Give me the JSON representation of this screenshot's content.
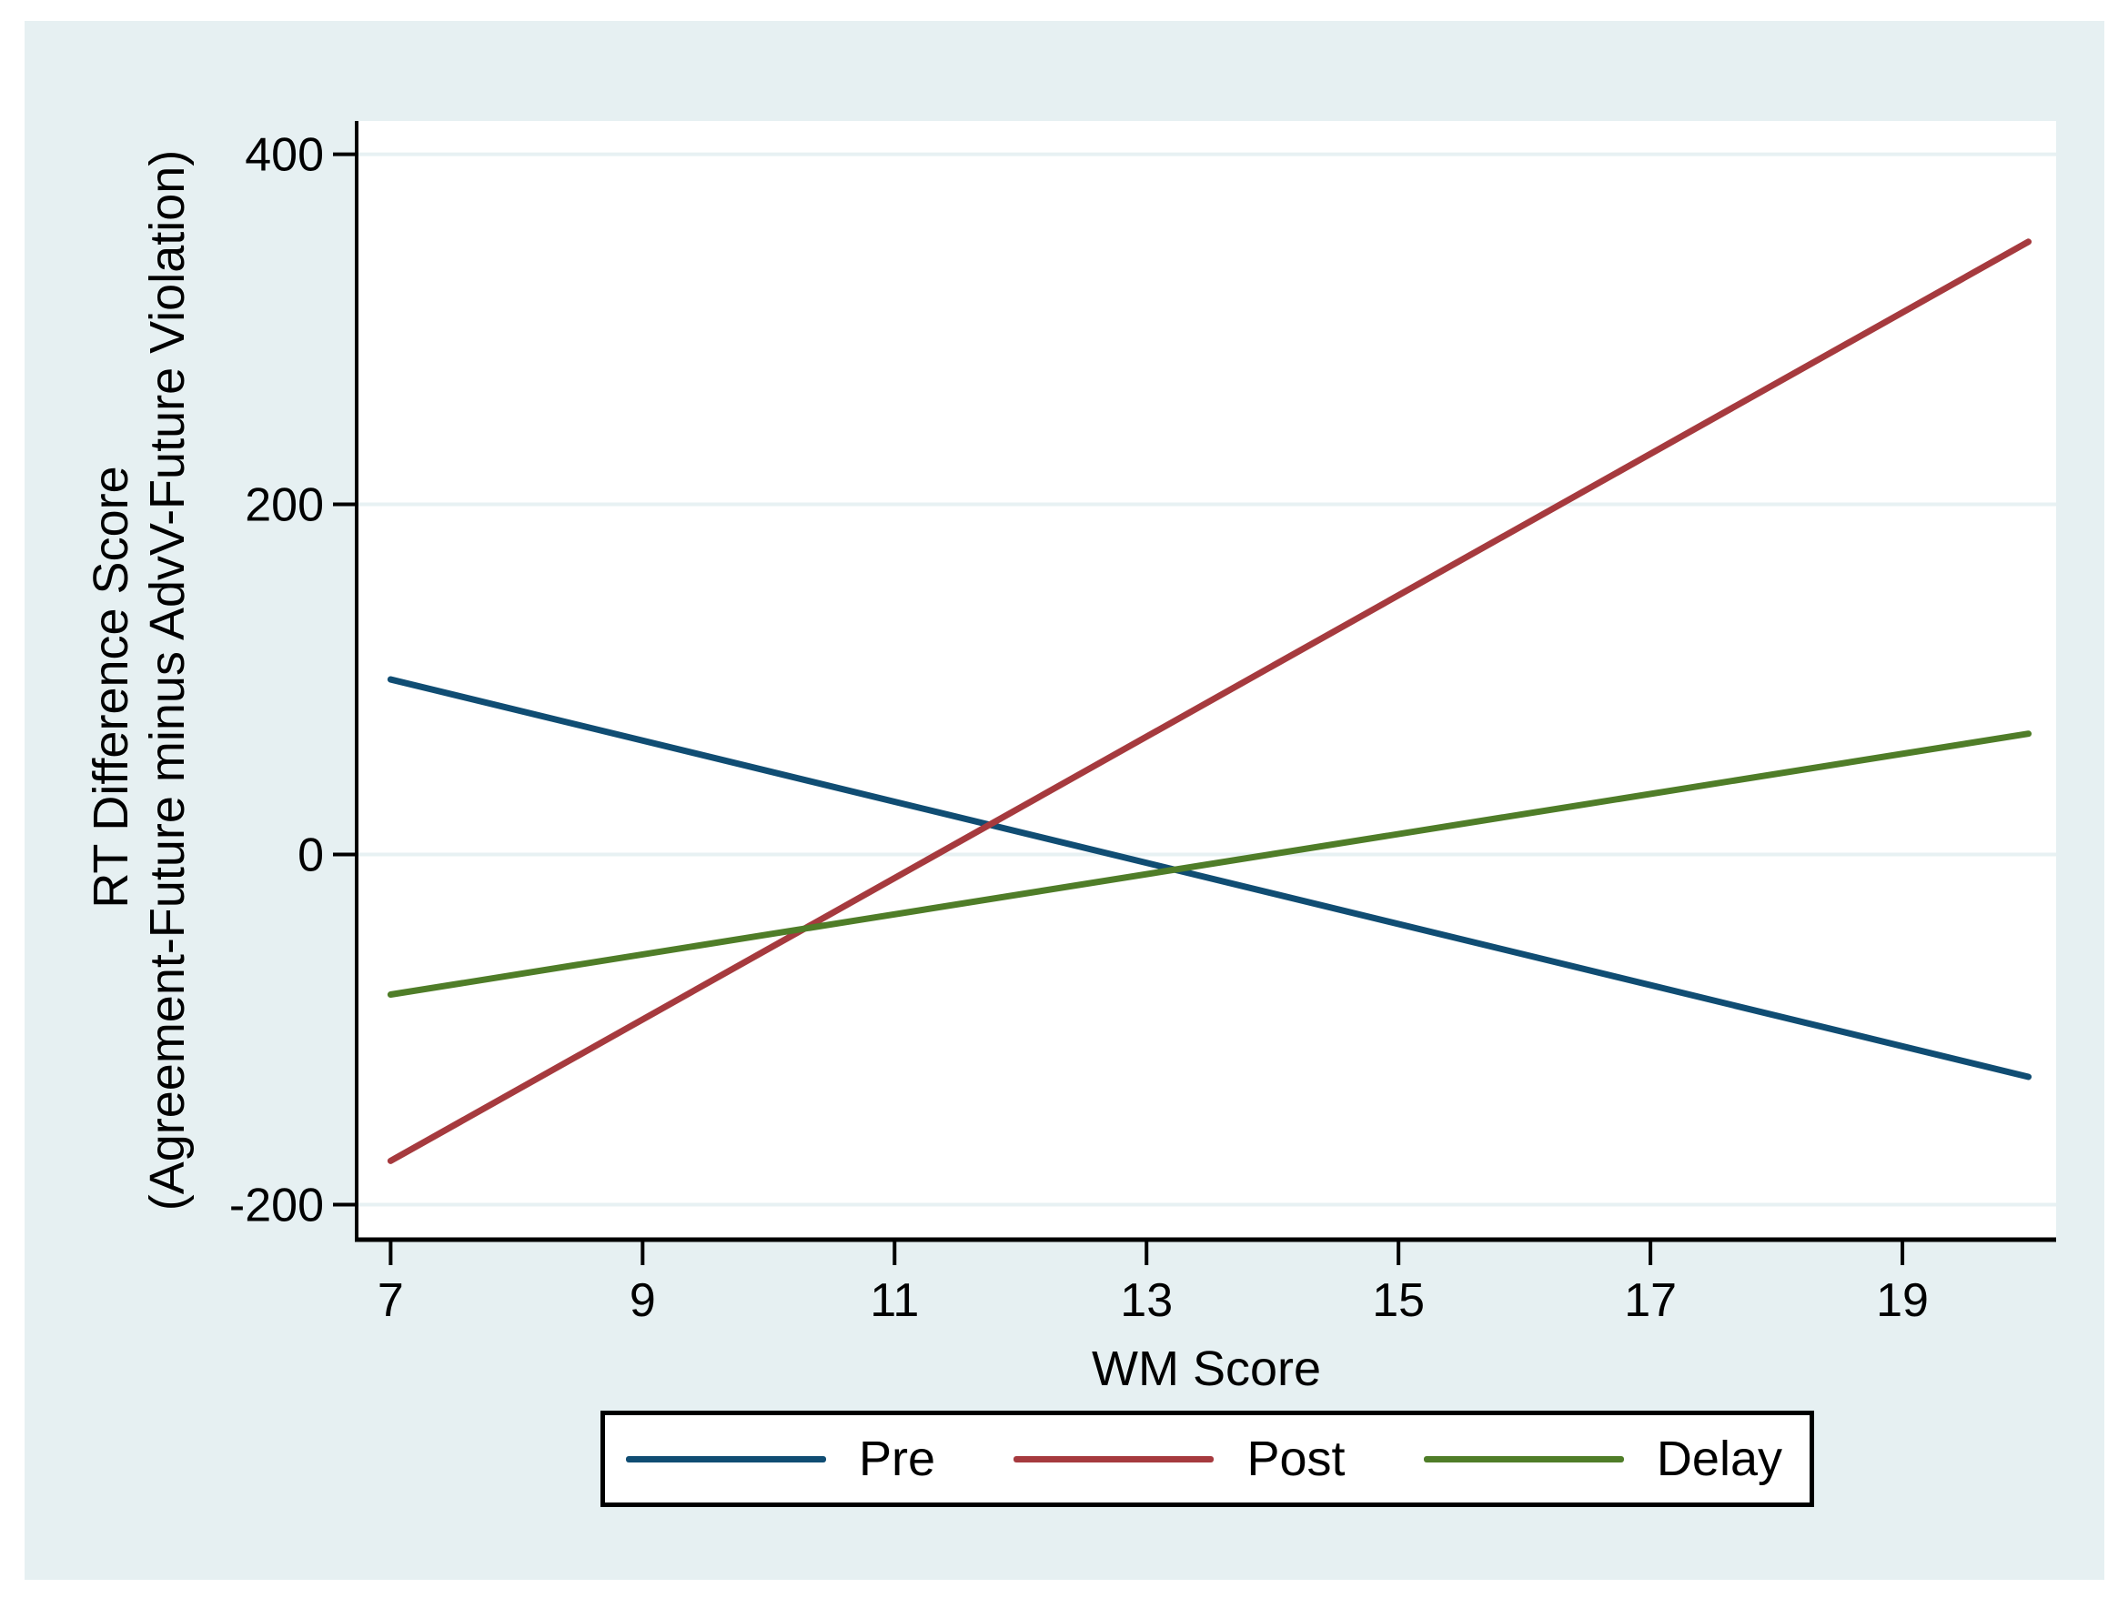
{
  "figure": {
    "background_color": "#e6f0f2",
    "plot_background": "#ffffff",
    "gridline_color": "#e7f1f3",
    "axis_color": "#000000",
    "text_color": "#000000"
  },
  "chart_data": {
    "type": "line",
    "title": "",
    "xlabel": "WM Score",
    "ylabel_line1": "RT Difference Score",
    "ylabel_line2": "(Agreement-Future minus AdvV-Future Violation)",
    "x_ticks": [
      7,
      9,
      11,
      13,
      15,
      17,
      19
    ],
    "y_ticks": [
      -200,
      0,
      200,
      400
    ],
    "xlim": [
      6.73,
      20.22
    ],
    "ylim": [
      -220,
      419
    ],
    "grid": true,
    "legend_position": "bottom-center",
    "series": [
      {
        "name": "Pre",
        "color": "#104d73",
        "x": [
          7,
          20
        ],
        "y": [
          100,
          -127
        ]
      },
      {
        "name": "Post",
        "color": "#a63a3e",
        "x": [
          7,
          20
        ],
        "y": [
          -175,
          350
        ]
      },
      {
        "name": "Delay",
        "color": "#4f7d28",
        "x": [
          7,
          20
        ],
        "y": [
          -80,
          69
        ]
      }
    ]
  }
}
